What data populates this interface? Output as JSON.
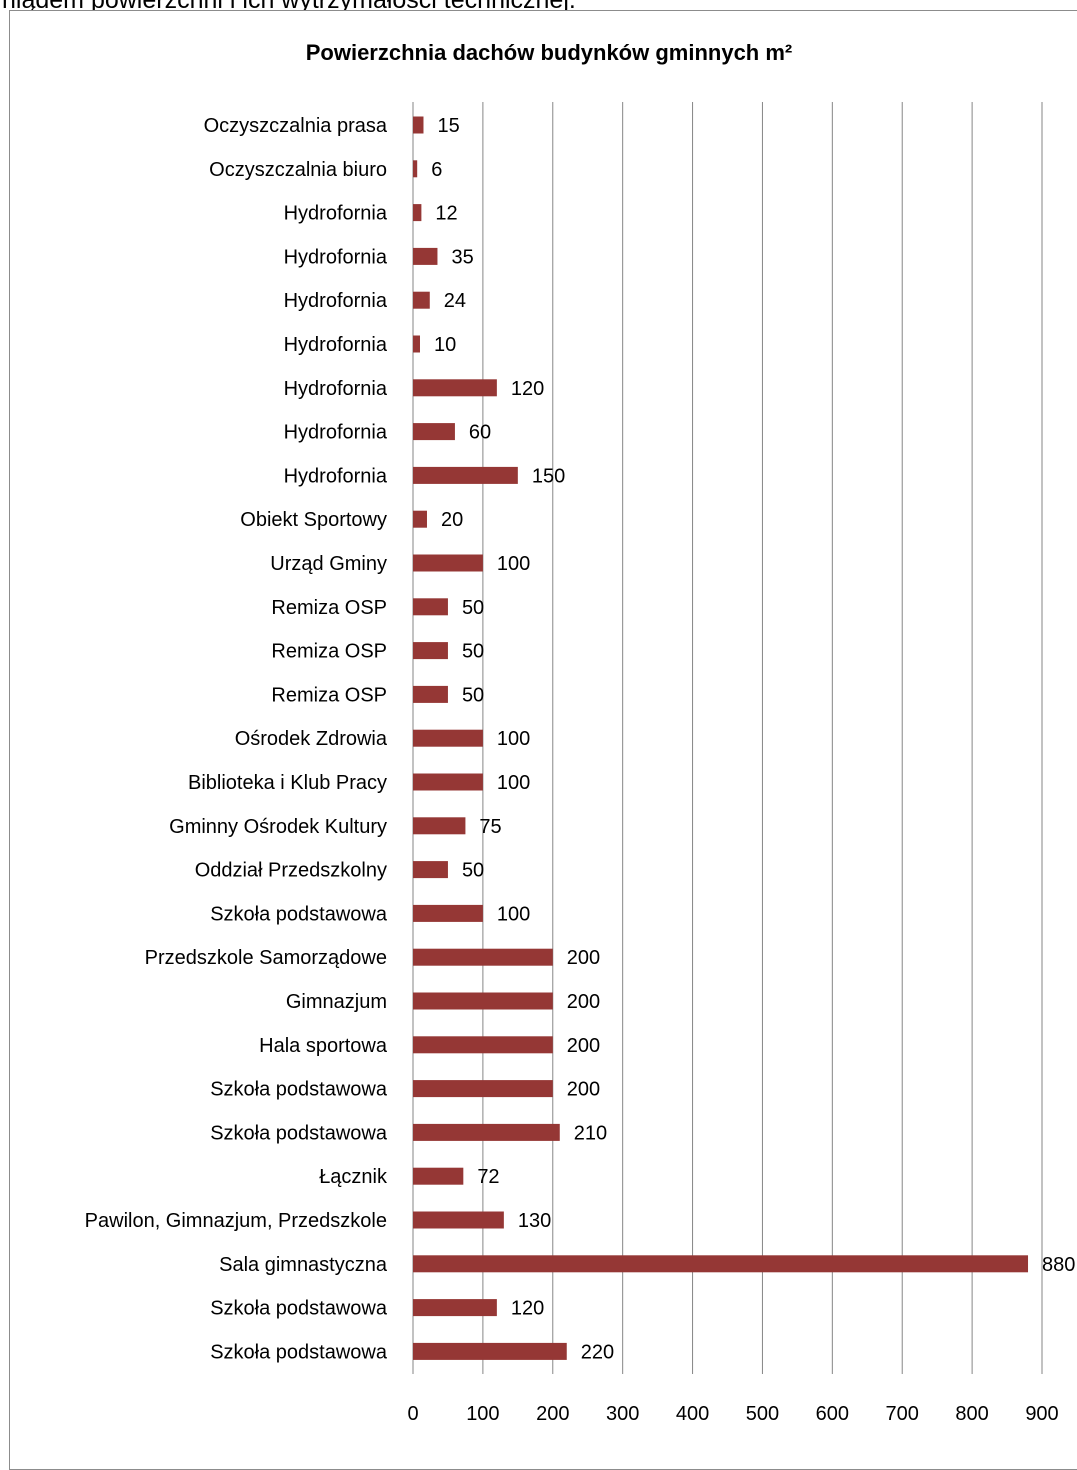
{
  "top_text": "niądem powierzchni i ich wytrzymałości technicznej.",
  "chart_data": {
    "type": "bar",
    "orientation": "horizontal",
    "title": "Powierzchnia dachów budynków gminnych m²",
    "xlabel": "",
    "ylabel": "",
    "xlim": [
      0,
      900
    ],
    "xticks": [
      0,
      100,
      200,
      300,
      400,
      500,
      600,
      700,
      800,
      900
    ],
    "grid": true,
    "legend": "none",
    "bar_color": "#953735",
    "categories": [
      "Oczyszczalnia prasa",
      "Oczyszczalnia biuro",
      "Hydrofornia",
      "Hydrofornia",
      "Hydrofornia",
      "Hydrofornia",
      "Hydrofornia",
      "Hydrofornia",
      "Hydrofornia",
      "Obiekt Sportowy",
      "Urząd Gminy",
      "Remiza OSP",
      "Remiza OSP",
      "Remiza OSP",
      "Ośrodek Zdrowia",
      "Biblioteka i Klub Pracy",
      "Gminny Ośrodek Kultury",
      "Oddział Przedszkolny",
      "Szkoła podstawowa",
      "Przedszkole Samorządowe",
      "Gimnazjum",
      "Hala sportowa",
      "Szkoła podstawowa",
      "Szkoła podstawowa",
      "Łącznik",
      "Pawilon, Gimnazjum, Przedszkole",
      "Sala gimnastyczna",
      "Szkoła podstawowa",
      "Szkoła podstawowa"
    ],
    "values": [
      15,
      6,
      12,
      35,
      24,
      10,
      120,
      60,
      150,
      20,
      100,
      50,
      50,
      50,
      100,
      100,
      75,
      50,
      100,
      200,
      200,
      200,
      200,
      210,
      72,
      130,
      880,
      120,
      220
    ]
  }
}
